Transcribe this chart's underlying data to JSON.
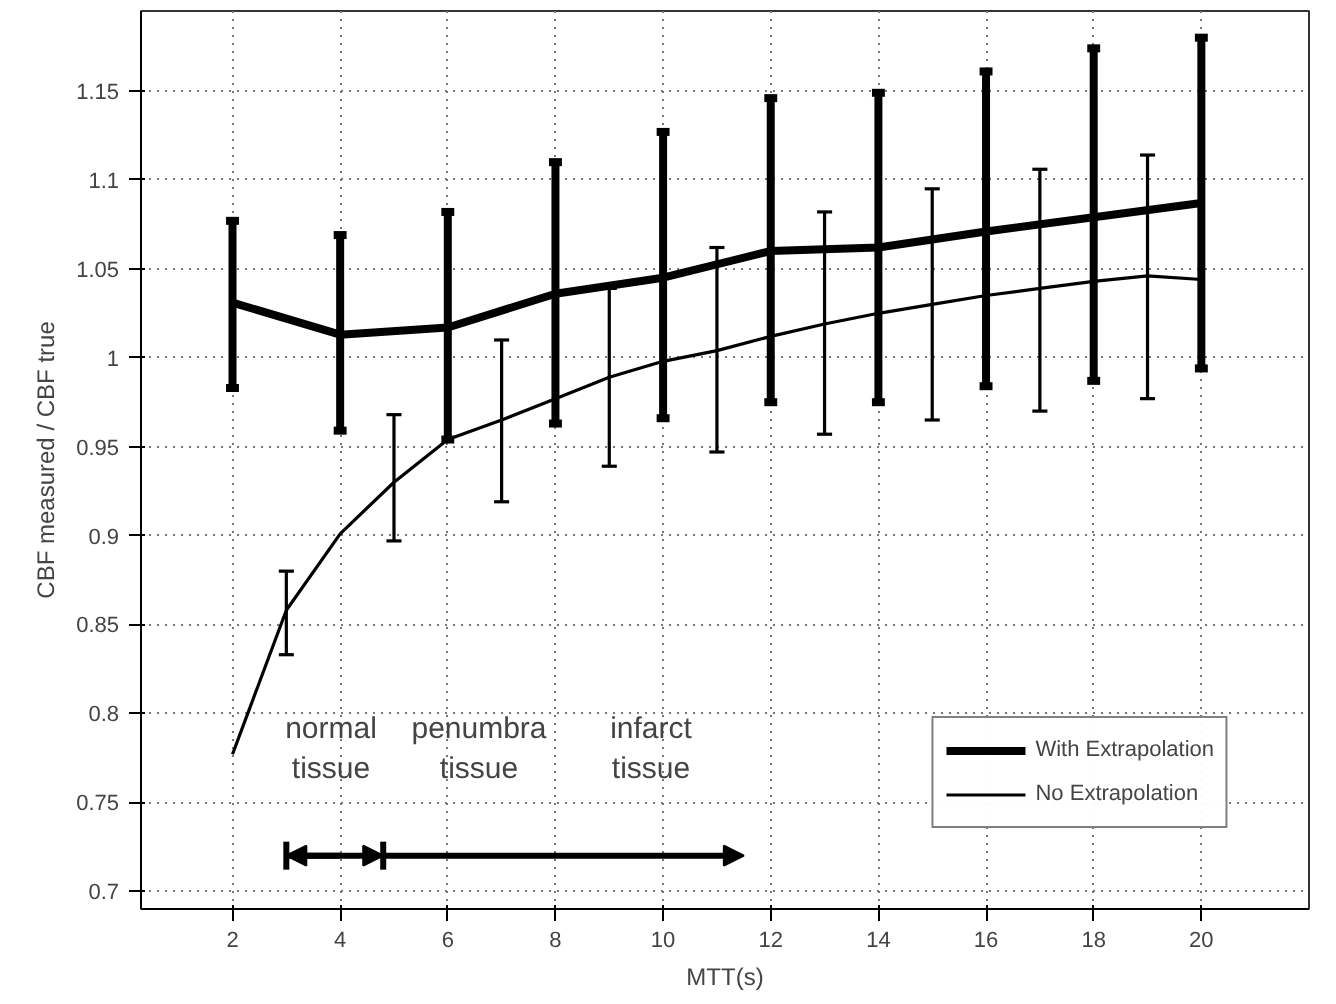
{
  "chart_data": {
    "type": "line",
    "xlabel": "MTT(s)",
    "ylabel": "CBF measured / CBF true",
    "xlim": [
      0.3,
      22
    ],
    "ylim": [
      0.69,
      1.195
    ],
    "xticks": [
      2,
      4,
      6,
      8,
      10,
      12,
      14,
      16,
      18,
      20
    ],
    "yticks": [
      0.7,
      0.75,
      0.8,
      0.85,
      0.9,
      0.95,
      1,
      1.05,
      1.1,
      1.15
    ],
    "grid": true,
    "legend": "bottom right",
    "marker": "none",
    "line_style": "solid",
    "series": [
      {
        "name": "With Extrapolation",
        "color": "#000000",
        "x": [
          2,
          4,
          6,
          8,
          10,
          12,
          14,
          16,
          18,
          20
        ],
        "values": [
          1.031,
          1.013,
          1.017,
          1.036,
          1.045,
          1.06,
          1.062,
          1.071,
          1.079,
          1.087
        ],
        "errors": [
          [
            0.983,
            1.077
          ],
          [
            0.959,
            1.069
          ],
          [
            0.954,
            1.082
          ],
          [
            0.963,
            1.11
          ],
          [
            0.966,
            1.127
          ],
          [
            0.975,
            1.146
          ],
          [
            0.975,
            1.149
          ],
          [
            0.984,
            1.161
          ],
          [
            0.987,
            1.174
          ],
          [
            0.994,
            1.18
          ]
        ]
      },
      {
        "name": "No Extrapolation",
        "color": "#000000",
        "x": [
          2,
          3,
          4,
          5,
          6,
          7,
          8,
          9,
          10,
          11,
          12,
          13,
          14,
          15,
          16,
          17,
          18,
          19,
          20
        ],
        "values": [
          0.777,
          0.858,
          0.901,
          0.93,
          0.954,
          0.965,
          0.977,
          0.989,
          0.998,
          1.004,
          1.012,
          1.019,
          1.025,
          1.03,
          1.035,
          1.039,
          1.043,
          1.046,
          1.044
        ],
        "errors": [
          null,
          [
            0.833,
            0.88
          ],
          null,
          [
            0.897,
            0.968
          ],
          null,
          [
            0.919,
            1.01
          ],
          null,
          [
            0.939,
            1.039
          ],
          null,
          [
            0.947,
            1.062
          ],
          null,
          [
            0.957,
            1.082
          ],
          null,
          [
            0.965,
            1.095
          ],
          null,
          [
            0.97,
            1.106
          ],
          null,
          [
            0.977,
            1.114
          ],
          null
        ]
      }
    ],
    "annotations": [
      "normal\ntissue",
      "penumbra\ntissue",
      "infarct\ntissue"
    ]
  }
}
